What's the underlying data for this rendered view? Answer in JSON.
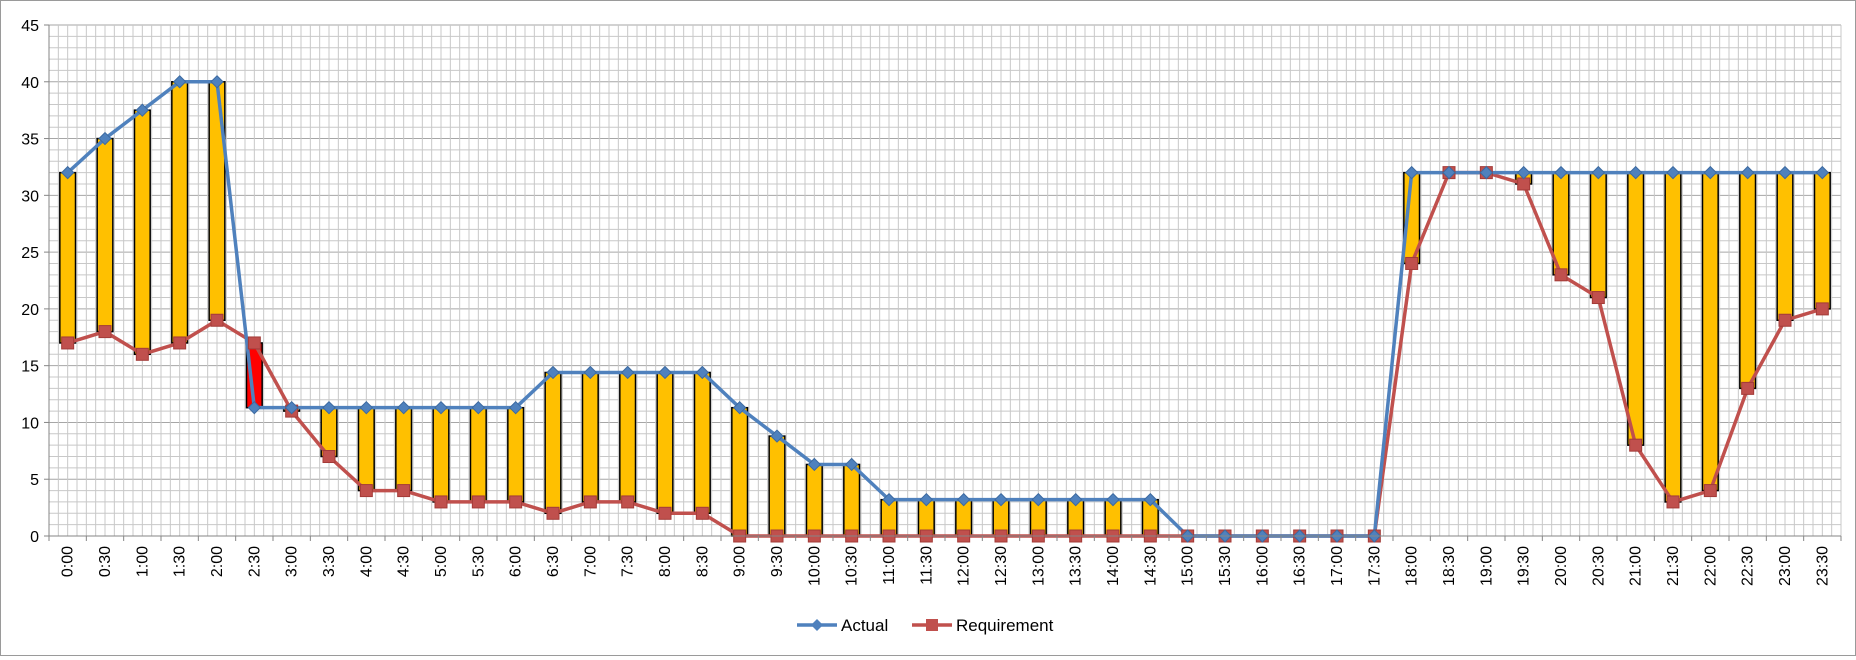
{
  "chart_data": {
    "type": "line",
    "categories": [
      "0:00",
      "0:30",
      "1:00",
      "1:30",
      "2:00",
      "2:30",
      "3:00",
      "3:30",
      "4:00",
      "4:30",
      "5:00",
      "5:30",
      "6:00",
      "6:30",
      "7:00",
      "7:30",
      "8:00",
      "8:30",
      "9:00",
      "9:30",
      "10:00",
      "10:30",
      "11:00",
      "11:30",
      "12:00",
      "12:30",
      "13:00",
      "13:30",
      "14:00",
      "14:30",
      "15:00",
      "15:30",
      "16:00",
      "16:30",
      "17:00",
      "17:30",
      "18:00",
      "18:30",
      "19:00",
      "19:30",
      "20:00",
      "20:30",
      "21:00",
      "21:30",
      "22:00",
      "22:30",
      "23:00",
      "23:30"
    ],
    "series": [
      {
        "name": "Actual",
        "color": "#4F81BD",
        "marker": "diamond",
        "values": [
          32,
          35,
          37.5,
          40,
          40,
          11.3,
          11.3,
          11.3,
          11.3,
          11.3,
          11.3,
          11.3,
          11.3,
          14.4,
          14.4,
          14.4,
          14.4,
          14.4,
          11.3,
          8.8,
          6.3,
          6.3,
          3.2,
          3.2,
          3.2,
          3.2,
          3.2,
          3.2,
          3.2,
          3.2,
          0,
          0,
          0,
          0,
          0,
          0,
          32,
          32,
          32,
          32,
          32,
          32,
          32,
          32,
          32,
          32,
          32,
          32
        ]
      },
      {
        "name": "Requirement",
        "color": "#C0504D",
        "marker": "square",
        "values": [
          17,
          18,
          16,
          17,
          19,
          17,
          11,
          7,
          4,
          4,
          3,
          3,
          3,
          2,
          3,
          3,
          2,
          2,
          0,
          0,
          0,
          0,
          0,
          0,
          0,
          0,
          0,
          0,
          0,
          0,
          0,
          0,
          0,
          0,
          0,
          0,
          24,
          32,
          32,
          31,
          23,
          21,
          8,
          3,
          4,
          13,
          19,
          20
        ]
      }
    ],
    "difference_bars": {
      "surplus_color": "#FFC000",
      "deficit_color": "#FF0000"
    },
    "ylim": [
      0,
      45
    ],
    "yticks": [
      0,
      5,
      10,
      15,
      20,
      25,
      30,
      35,
      40,
      45
    ],
    "grid": true,
    "legend_position": "bottom"
  }
}
